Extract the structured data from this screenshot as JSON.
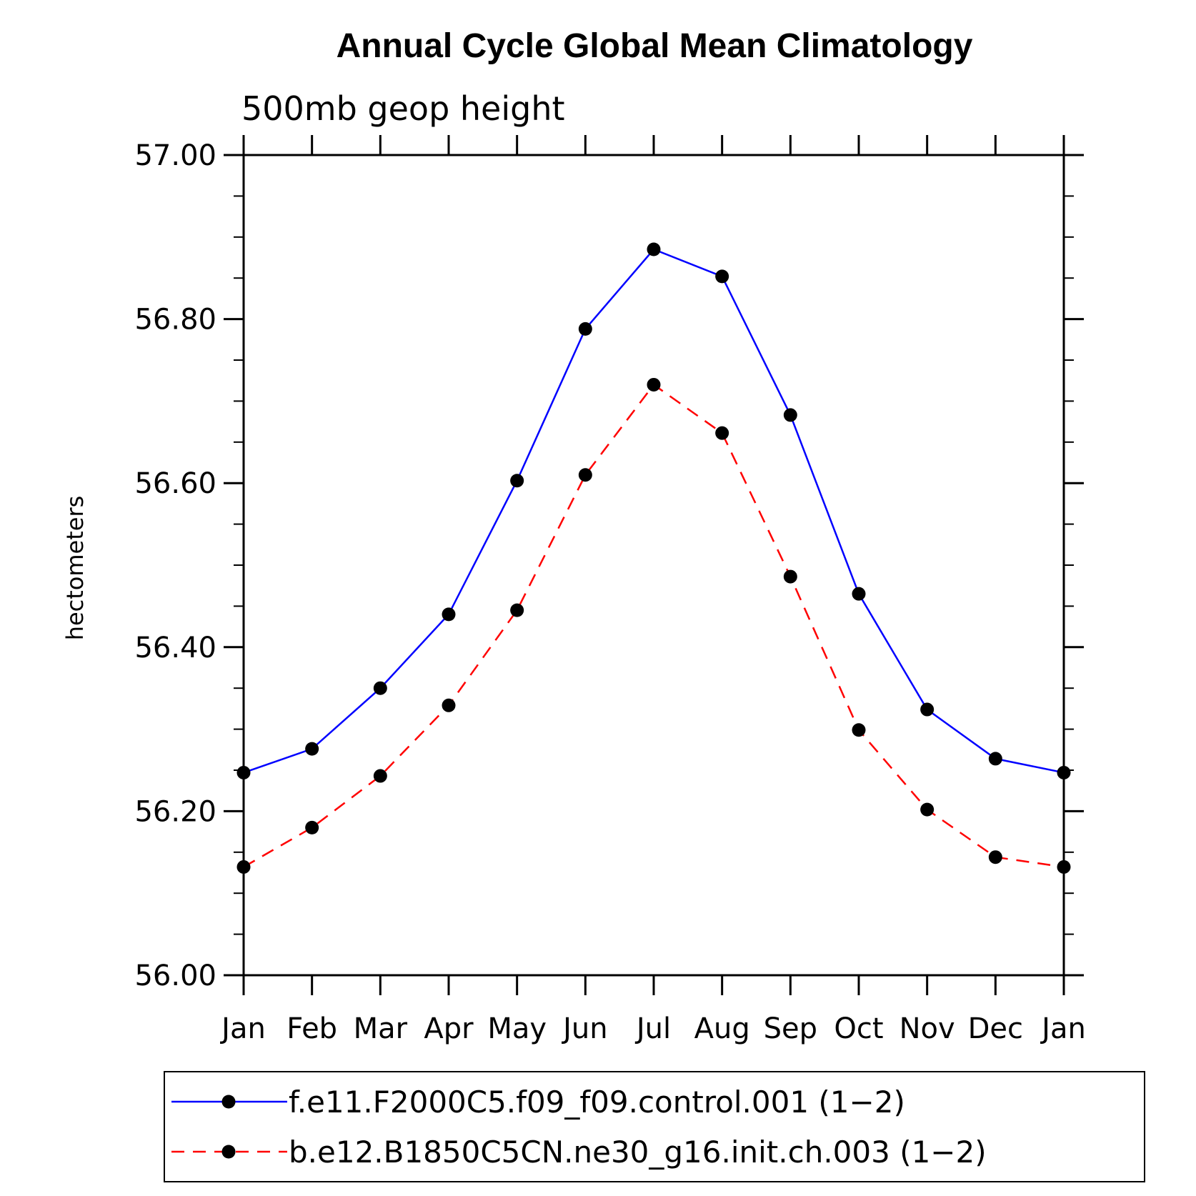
{
  "chart_data": {
    "type": "line",
    "title": "Annual Cycle Global Mean Climatology",
    "subtitle": "500mb geop height",
    "ylabel": "hectometers",
    "xlabel": "",
    "categories": [
      "Jan",
      "Feb",
      "Mar",
      "Apr",
      "May",
      "Jun",
      "Jul",
      "Aug",
      "Sep",
      "Oct",
      "Nov",
      "Dec",
      "Jan"
    ],
    "ylim": [
      56.0,
      57.0
    ],
    "yticks": [
      "56.00",
      "56.20",
      "56.40",
      "56.60",
      "56.80",
      "57.00"
    ],
    "grid": false,
    "legend_position": "bottom",
    "series": [
      {
        "name": "f.e11.F2000C5.f09_f09.control.001 (1−2)",
        "color": "#0000ff",
        "line_style": "solid",
        "marker": "filled-circle",
        "values": [
          56.247,
          56.276,
          56.35,
          56.44,
          56.603,
          56.788,
          56.885,
          56.852,
          56.683,
          56.465,
          56.324,
          56.264,
          56.247
        ]
      },
      {
        "name": "b.e12.B1850C5CN.ne30_g16.init.ch.003 (1−2)",
        "color": "#ff0000",
        "line_style": "dashed",
        "marker": "filled-circle",
        "values": [
          56.132,
          56.18,
          56.243,
          56.329,
          56.445,
          56.61,
          56.72,
          56.661,
          56.486,
          56.299,
          56.202,
          56.144,
          56.132
        ]
      }
    ]
  }
}
